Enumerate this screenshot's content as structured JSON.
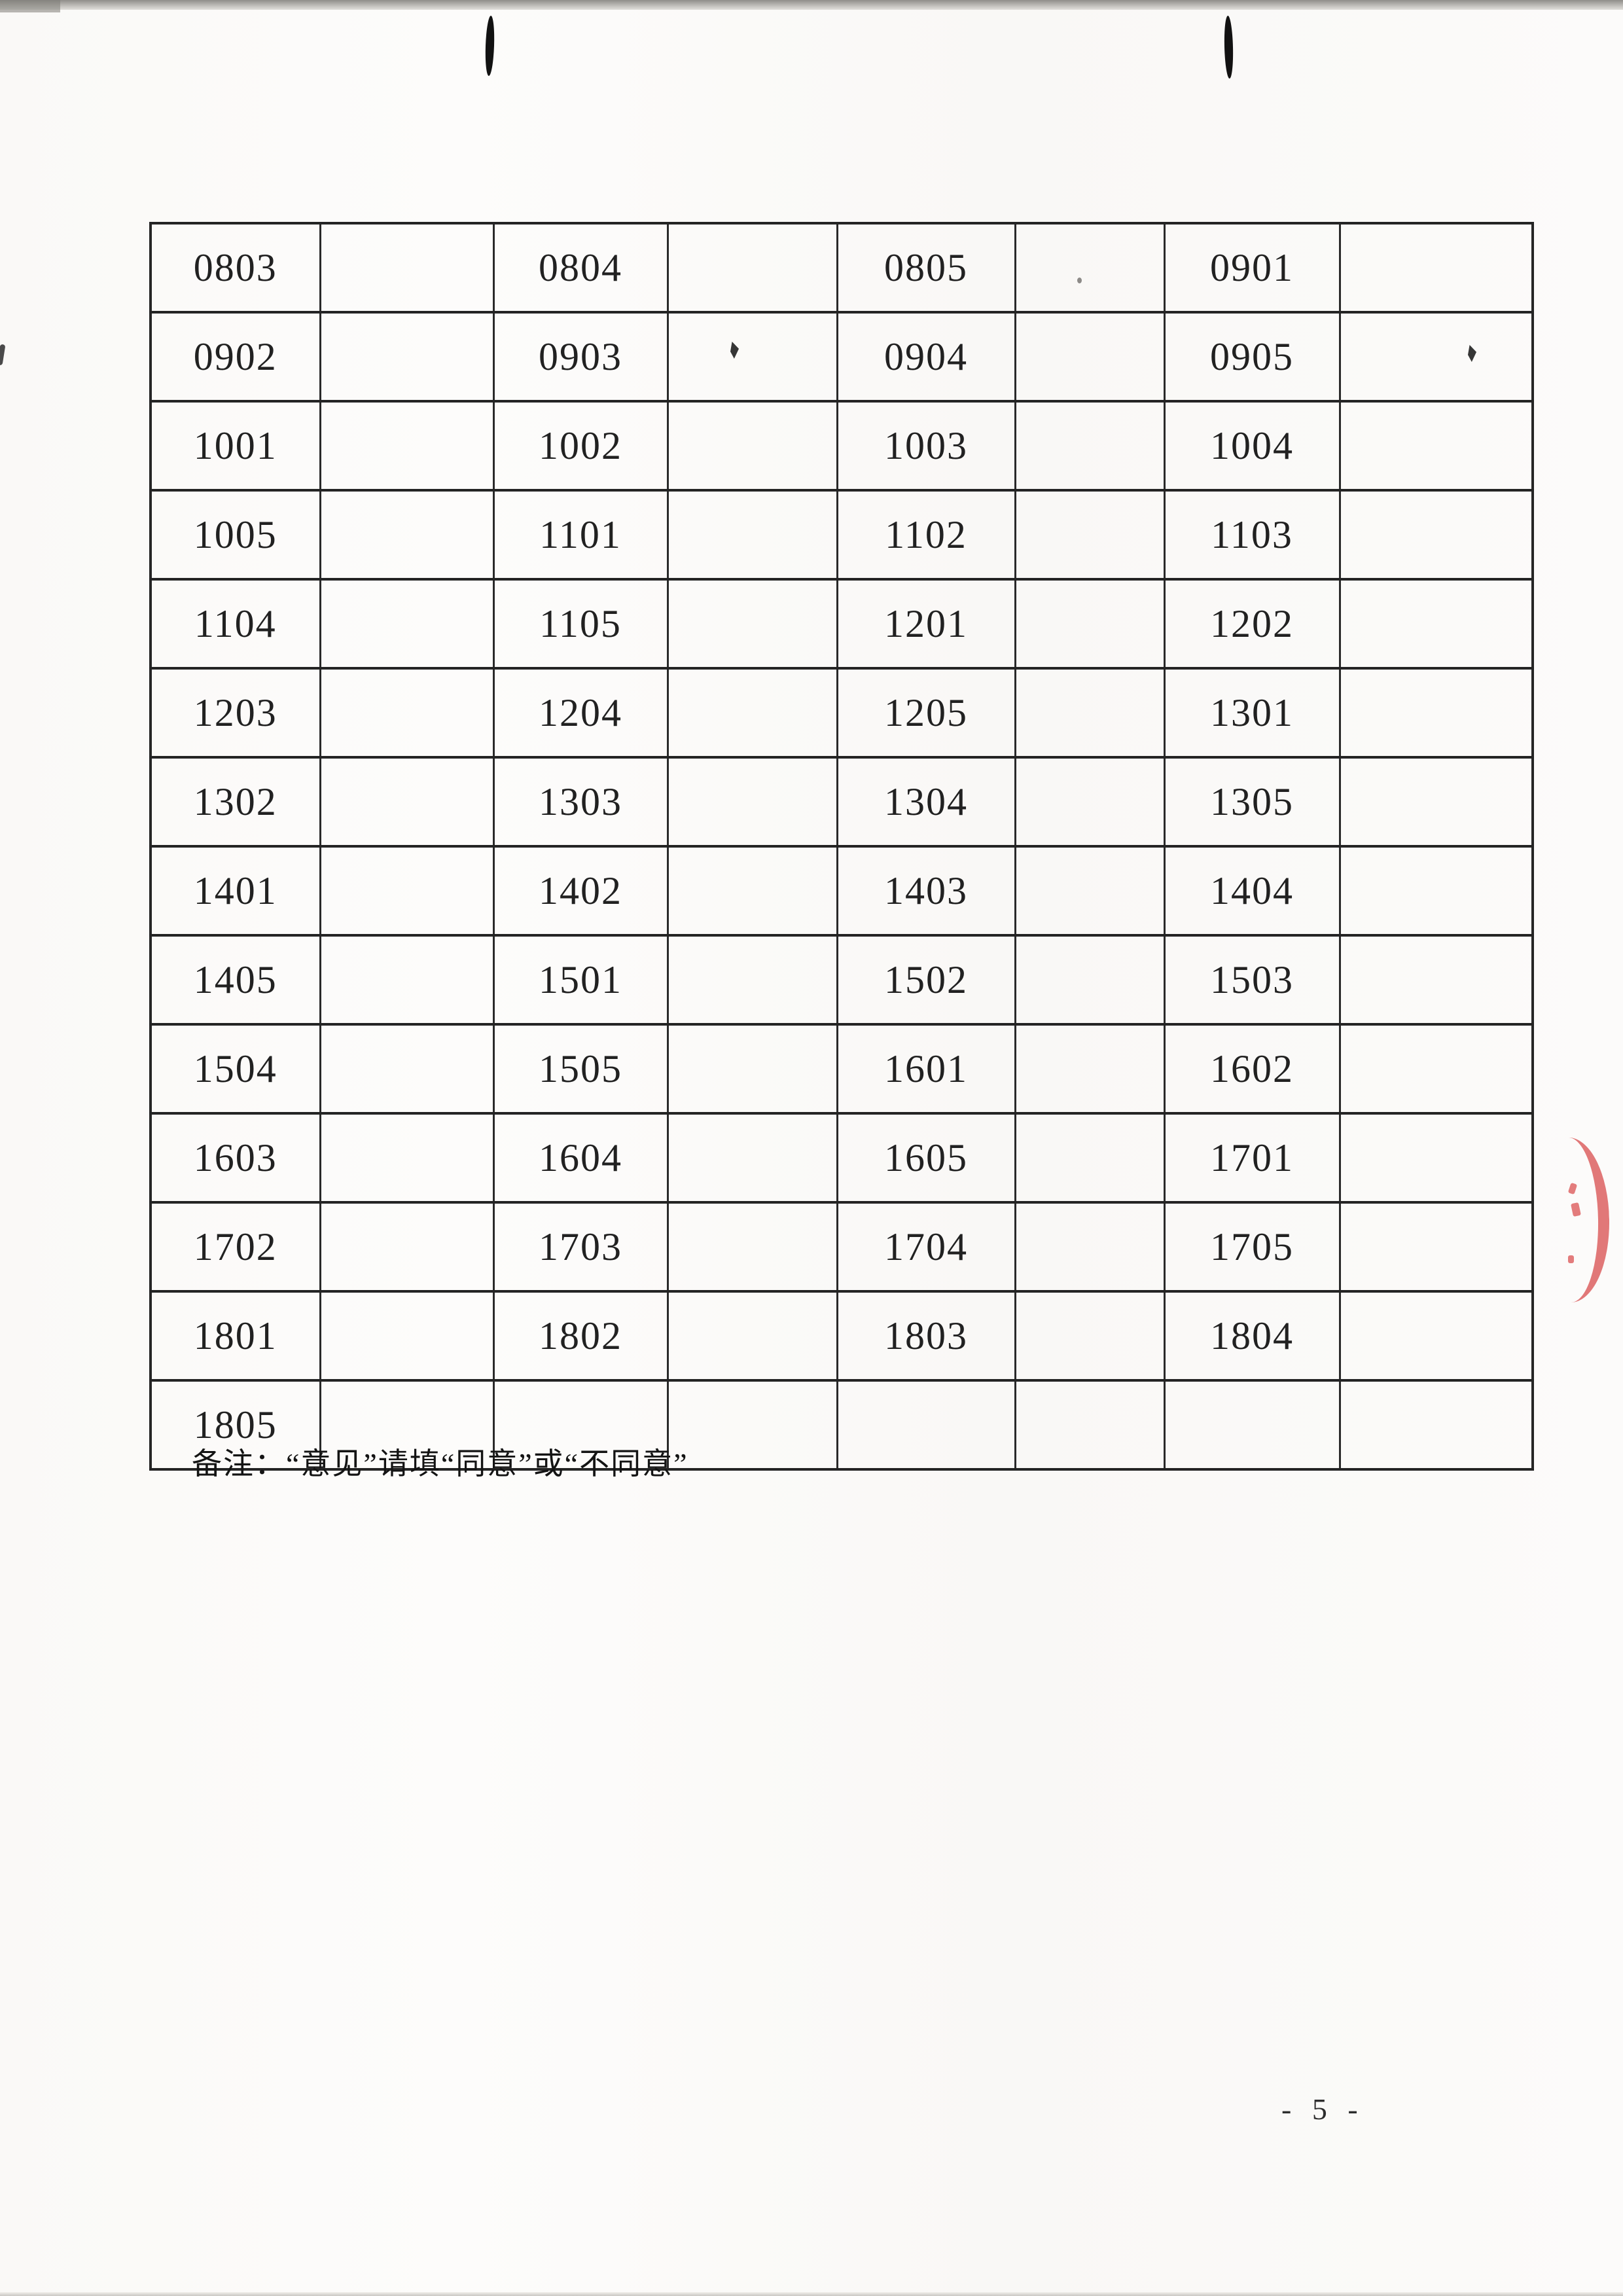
{
  "page": {
    "note": "备注：“意见”请填“同意”或“不同意”",
    "page_number": "- 5 -"
  },
  "table": {
    "rows": [
      [
        "0803",
        "",
        "0804",
        "",
        "0805",
        "",
        "0901",
        ""
      ],
      [
        "0902",
        "",
        "0903",
        "",
        "0904",
        "",
        "0905",
        ""
      ],
      [
        "1001",
        "",
        "1002",
        "",
        "1003",
        "",
        "1004",
        ""
      ],
      [
        "1005",
        "",
        "1101",
        "",
        "1102",
        "",
        "1103",
        ""
      ],
      [
        "1104",
        "",
        "1105",
        "",
        "1201",
        "",
        "1202",
        ""
      ],
      [
        "1203",
        "",
        "1204",
        "",
        "1205",
        "",
        "1301",
        ""
      ],
      [
        "1302",
        "",
        "1303",
        "",
        "1304",
        "",
        "1305",
        ""
      ],
      [
        "1401",
        "",
        "1402",
        "",
        "1403",
        "",
        "1404",
        ""
      ],
      [
        "1405",
        "",
        "1501",
        "",
        "1502",
        "",
        "1503",
        ""
      ],
      [
        "1504",
        "",
        "1505",
        "",
        "1601",
        "",
        "1602",
        ""
      ],
      [
        "1603",
        "",
        "1604",
        "",
        "1605",
        "",
        "1701",
        ""
      ],
      [
        "1702",
        "",
        "1703",
        "",
        "1704",
        "",
        "1705",
        ""
      ],
      [
        "1801",
        "",
        "1802",
        "",
        "1803",
        "",
        "1804",
        ""
      ],
      [
        "1805",
        "",
        "",
        "",
        "",
        "",
        "",
        ""
      ]
    ]
  },
  "artifacts": {
    "stamp_color": "#dc5c5c",
    "staple_color": "#121212",
    "speck_color": "#363636"
  }
}
